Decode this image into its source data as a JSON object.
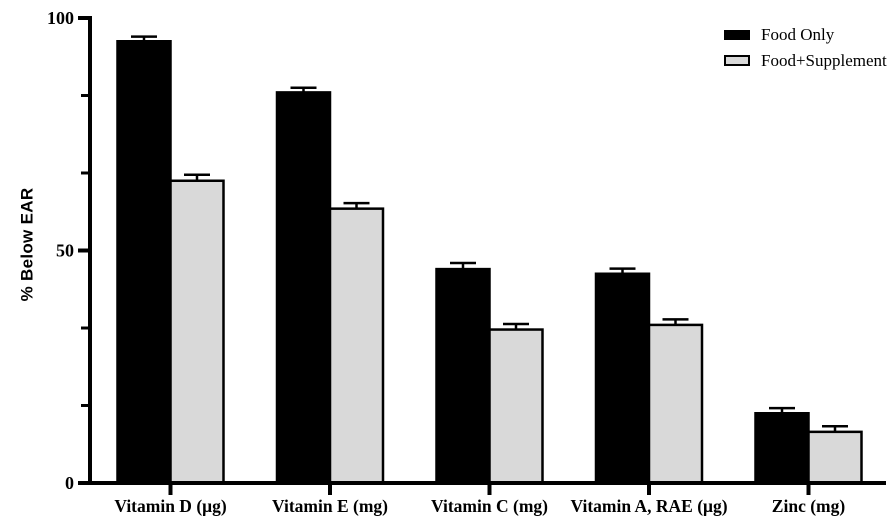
{
  "chart_data": {
    "type": "bar",
    "title": "",
    "xlabel": "",
    "ylabel": "% Below EAR",
    "ylim": [
      0,
      100
    ],
    "yticks_major": [
      0,
      50,
      100
    ],
    "yticks_minor": [
      16.67,
      33.33,
      66.67,
      83.33
    ],
    "grid": false,
    "legend_position": "top-right",
    "error_bars": "upper",
    "categories": [
      "Vitamin D (μg)",
      "Vitamin E (mg)",
      "Vitamin C (mg)",
      "Vitamin A, RAE (μg)",
      "Zinc (mg)"
    ],
    "series": [
      {
        "name": "Food Only",
        "color": "#000000",
        "values": [
          95,
          84,
          46,
          45,
          15
        ],
        "errors": [
          1,
          1,
          1.3,
          1.1,
          1.1
        ]
      },
      {
        "name": "Food+Supplement",
        "color": "#d9d9d9",
        "values": [
          65,
          59,
          33,
          34,
          11
        ],
        "errors": [
          1.3,
          1.2,
          1.2,
          1.2,
          1.2
        ]
      }
    ],
    "axis_color": "#000000"
  }
}
